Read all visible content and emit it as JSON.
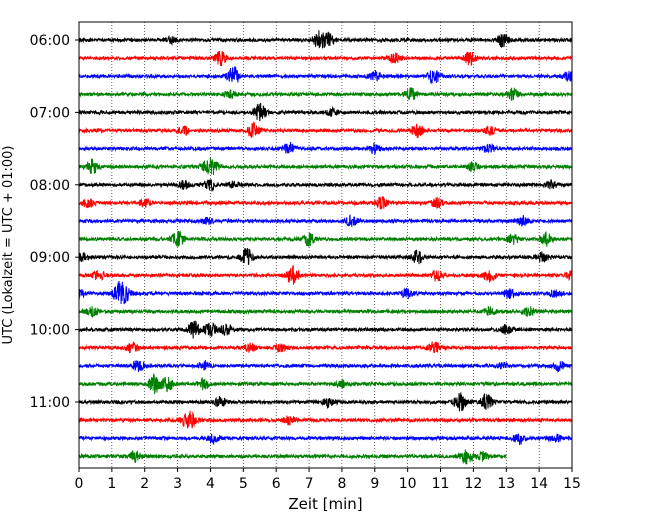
{
  "chart_data": {
    "type": "line",
    "xlabel": "Zeit  [min]",
    "ylabel": "UTC (Lokalzeit = UTC + 01:00)",
    "xlim": [
      0,
      15
    ],
    "x_ticks": [
      "0",
      "1",
      "2",
      "3",
      "4",
      "5",
      "6",
      "7",
      "8",
      "9",
      "10",
      "11",
      "12",
      "13",
      "14",
      "15"
    ],
    "y_ticks": [
      "06:00",
      "07:00",
      "08:00",
      "09:00",
      "10:00",
      "11:00"
    ],
    "grid_x": true,
    "trace_colors": [
      "#000000",
      "#ff0000",
      "#0000ff",
      "#008000"
    ],
    "traces": [
      {
        "start": "06:00",
        "end_min": 15,
        "events": [
          [
            7.3,
            0.9
          ],
          [
            7.6,
            0.7
          ],
          [
            12.9,
            0.7
          ],
          [
            2.8,
            0.3
          ]
        ]
      },
      {
        "start": "06:15",
        "end_min": 15,
        "events": [
          [
            4.3,
            0.8
          ],
          [
            11.9,
            0.7
          ],
          [
            9.6,
            0.5
          ]
        ]
      },
      {
        "start": "06:30",
        "end_min": 15,
        "events": [
          [
            4.7,
            1.0
          ],
          [
            10.8,
            0.8
          ],
          [
            9.0,
            0.5
          ],
          [
            14.9,
            0.5
          ]
        ]
      },
      {
        "start": "06:45",
        "end_min": 15,
        "events": [
          [
            10.1,
            0.6
          ],
          [
            13.2,
            0.6
          ],
          [
            4.6,
            0.4
          ]
        ]
      },
      {
        "start": "07:00",
        "end_min": 15,
        "events": [
          [
            5.5,
            0.9
          ],
          [
            7.7,
            0.4
          ]
        ]
      },
      {
        "start": "07:15",
        "end_min": 15,
        "events": [
          [
            5.3,
            0.8
          ],
          [
            10.3,
            0.7
          ],
          [
            3.2,
            0.4
          ],
          [
            12.5,
            0.4
          ]
        ]
      },
      {
        "start": "07:30",
        "end_min": 15,
        "events": [
          [
            6.4,
            0.6
          ],
          [
            9.0,
            0.5
          ],
          [
            12.5,
            0.4
          ]
        ]
      },
      {
        "start": "07:45",
        "end_min": 15,
        "events": [
          [
            0.4,
            0.8
          ],
          [
            3.9,
            0.7
          ],
          [
            4.1,
            0.6
          ],
          [
            12.0,
            0.5
          ]
        ]
      },
      {
        "start": "08:00",
        "end_min": 15,
        "events": [
          [
            4.0,
            0.6
          ],
          [
            3.2,
            0.4
          ],
          [
            14.4,
            0.4
          ],
          [
            4.7,
            0.3
          ]
        ]
      },
      {
        "start": "08:15",
        "end_min": 15,
        "events": [
          [
            0.3,
            0.5
          ],
          [
            9.2,
            0.6
          ],
          [
            2.0,
            0.4
          ],
          [
            10.9,
            0.5
          ]
        ]
      },
      {
        "start": "08:30",
        "end_min": 15,
        "events": [
          [
            8.3,
            0.6
          ],
          [
            13.5,
            0.5
          ],
          [
            3.9,
            0.3
          ]
        ]
      },
      {
        "start": "08:45",
        "end_min": 15,
        "events": [
          [
            3.0,
            0.8
          ],
          [
            7.0,
            0.7
          ],
          [
            13.2,
            0.5
          ],
          [
            14.2,
            0.7
          ]
        ]
      },
      {
        "start": "09:00",
        "end_min": 15,
        "events": [
          [
            5.1,
            1.0
          ],
          [
            10.3,
            0.7
          ],
          [
            0.1,
            0.4
          ],
          [
            14.1,
            0.5
          ]
        ]
      },
      {
        "start": "09:15",
        "end_min": 15,
        "events": [
          [
            6.5,
            1.0
          ],
          [
            0.6,
            0.5
          ],
          [
            10.9,
            0.6
          ],
          [
            12.5,
            0.7
          ],
          [
            15.0,
            0.6
          ]
        ]
      },
      {
        "start": "09:30",
        "end_min": 15,
        "events": [
          [
            1.2,
            1.0
          ],
          [
            1.4,
            0.8
          ],
          [
            0.0,
            0.5
          ],
          [
            10.0,
            0.5
          ],
          [
            13.1,
            0.5
          ],
          [
            14.5,
            0.5
          ]
        ]
      },
      {
        "start": "09:45",
        "end_min": 15,
        "events": [
          [
            0.4,
            0.5
          ],
          [
            12.5,
            0.4
          ],
          [
            13.7,
            0.5
          ]
        ]
      },
      {
        "start": "10:00",
        "end_min": 15,
        "events": [
          [
            3.5,
            0.9
          ],
          [
            4.0,
            0.8
          ],
          [
            4.5,
            0.6
          ],
          [
            13.0,
            0.5
          ]
        ]
      },
      {
        "start": "10:15",
        "end_min": 15,
        "events": [
          [
            10.8,
            0.6
          ],
          [
            1.6,
            0.5
          ],
          [
            5.2,
            0.4
          ],
          [
            6.1,
            0.4
          ]
        ]
      },
      {
        "start": "10:30",
        "end_min": 15,
        "events": [
          [
            1.8,
            0.6
          ],
          [
            3.8,
            0.5
          ],
          [
            14.6,
            0.5
          ],
          [
            12.9,
            0.3
          ]
        ]
      },
      {
        "start": "10:45",
        "end_min": 15,
        "events": [
          [
            2.3,
            1.0
          ],
          [
            2.7,
            0.8
          ],
          [
            3.8,
            0.6
          ],
          [
            8.0,
            0.4
          ]
        ]
      },
      {
        "start": "11:00",
        "end_min": 15,
        "events": [
          [
            11.6,
            1.0
          ],
          [
            12.4,
            0.9
          ],
          [
            7.6,
            0.6
          ],
          [
            4.3,
            0.5
          ]
        ]
      },
      {
        "start": "11:15",
        "end_min": 15,
        "events": [
          [
            3.4,
            0.8
          ],
          [
            6.4,
            0.5
          ],
          [
            3.2,
            0.4
          ]
        ]
      },
      {
        "start": "11:30",
        "end_min": 15,
        "events": [
          [
            4.1,
            0.6
          ],
          [
            13.4,
            0.6
          ],
          [
            14.5,
            0.4
          ]
        ]
      },
      {
        "start": "11:45",
        "end_min": 13,
        "events": [
          [
            1.7,
            0.6
          ],
          [
            11.8,
            0.8
          ],
          [
            12.3,
            0.5
          ]
        ]
      }
    ]
  }
}
